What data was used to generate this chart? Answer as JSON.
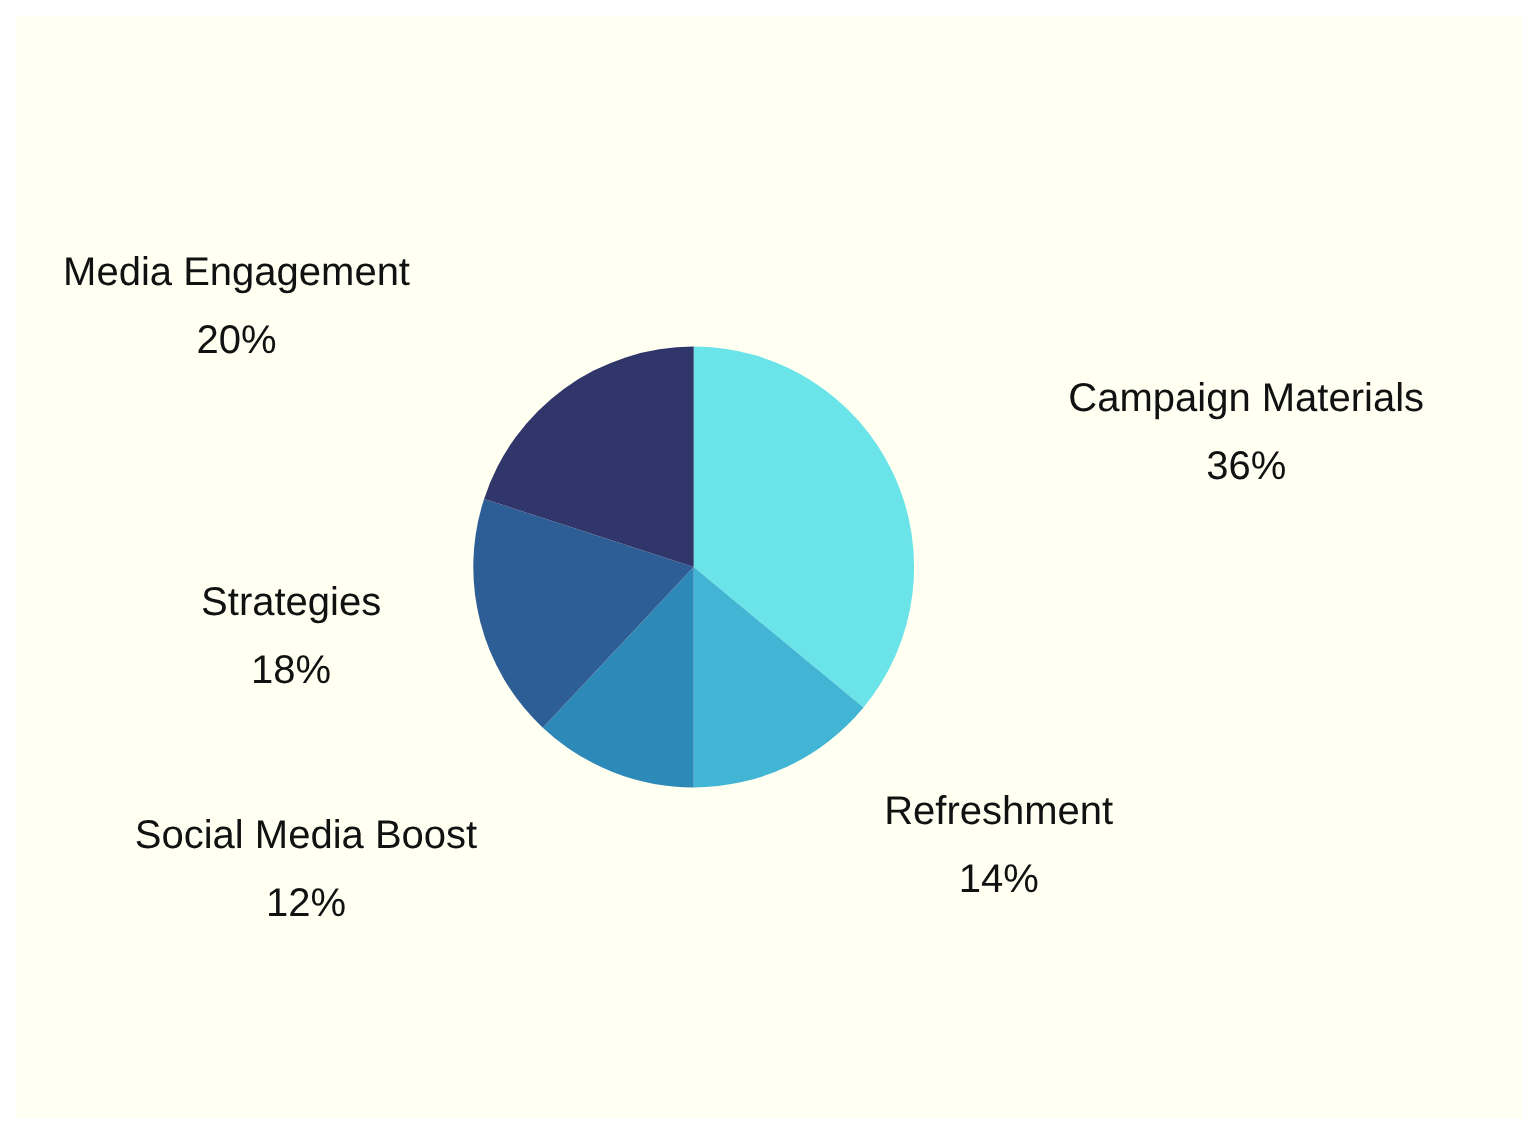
{
  "chart_data": {
    "type": "pie",
    "categories": [
      "Campaign Materials",
      "Refreshment",
      "Social Media Boost",
      "Strategies",
      "Media Engagement"
    ],
    "values": [
      36,
      14,
      12,
      18,
      20
    ],
    "value_labels": [
      "36%",
      "14%",
      "12%",
      "18%",
      "20%"
    ],
    "colors": [
      "#6ae4e8",
      "#42b4d4",
      "#2d8ab8",
      "#2e5e96",
      "#30356a"
    ],
    "legend": false
  }
}
